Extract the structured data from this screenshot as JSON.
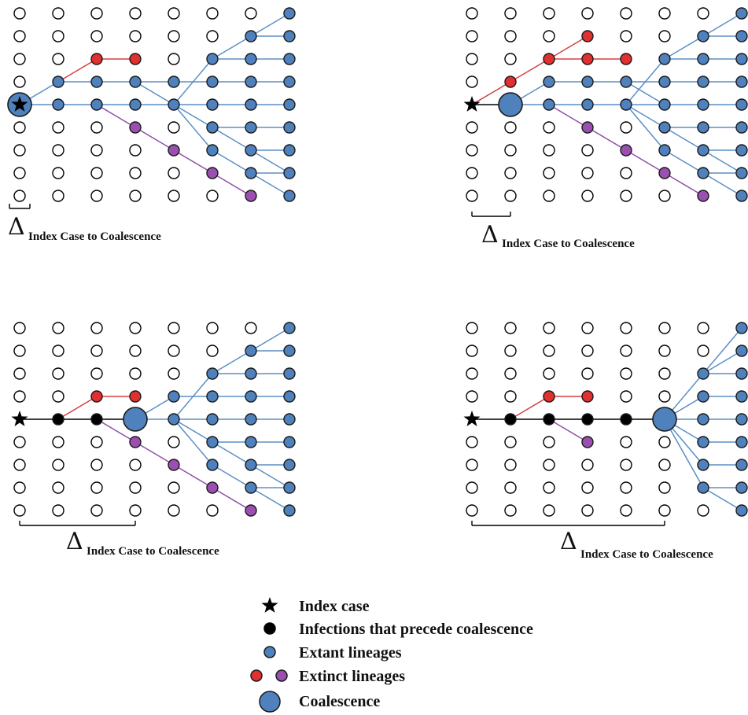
{
  "colors": {
    "extant": "#4f81bd",
    "extinct_red": "#e03030",
    "extinct_purple": "#9b4fb0",
    "line_blue": "#5b8fc6",
    "line_red": "#d64040",
    "line_purple": "#8e4fa8",
    "line_black": "#000000",
    "empty_stroke": "#000000"
  },
  "panels": [
    {
      "id": "top-left",
      "delta_symbol": "Δ",
      "delta_subscript": "Index Case to Coalescence"
    },
    {
      "id": "top-right",
      "delta_symbol": "Δ",
      "delta_subscript": "Index Case to Coalescence"
    },
    {
      "id": "bottom-left",
      "delta_symbol": "Δ",
      "delta_subscript": "Index Case to Coalescence"
    },
    {
      "id": "bottom-right",
      "delta_symbol": "Δ",
      "delta_subscript": "Index Case to Coalescence"
    }
  ],
  "legend": {
    "index_case": "Index case",
    "preceding_infections": "Infections that precede coalescence",
    "extant_lineages": "Extant lineages",
    "extinct_lineages": "Extinct lineages",
    "coalescence": "Coalescence"
  }
}
